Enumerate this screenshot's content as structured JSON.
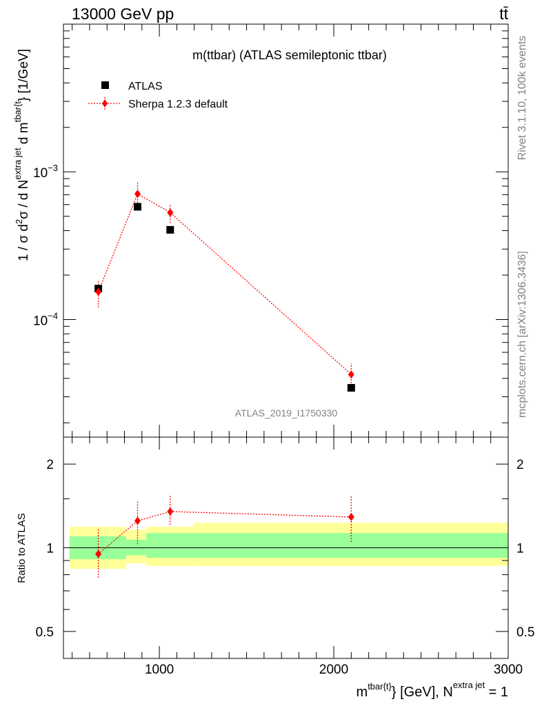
{
  "header": {
    "left": "13000 GeV pp",
    "right": "tt̄"
  },
  "side_labels": {
    "rivet": "Rivet 3.1.10,  100k events",
    "mcplots": "mcplots.cern.ch [arXiv:1306.3436]"
  },
  "chart_data": [
    {
      "type": "scatter",
      "title": "m(ttbar) (ATLAS semileptonic ttbar)",
      "watermark": "ATLAS_2019_I1750330",
      "ylabel": "1 / σ d²σ / d N^{extra jet} d m^{tbar{t}} [1/GeV]",
      "yscale": "log",
      "ylim": [
        1.6e-05,
        0.01
      ],
      "xlim": [
        450,
        3000
      ],
      "ytick_labels": [
        {
          "value": 0.001,
          "base": "10",
          "exp": "−3"
        },
        {
          "value": 0.0001,
          "base": "10",
          "exp": "−4"
        }
      ],
      "legend": {
        "placement": "top-left",
        "entries": [
          "ATLAS",
          "Sherpa 1.2.3 default"
        ]
      },
      "series": [
        {
          "name": "ATLAS",
          "color": "#000000",
          "marker": "square",
          "x": [
            650,
            875,
            1062,
            2100
          ],
          "y": [
            0.000162,
            0.00058,
            0.000405,
            3.45e-05
          ]
        },
        {
          "name": "Sherpa 1.2.3 default",
          "color": "#ff0000",
          "marker": "diamond",
          "line": "dotted",
          "x": [
            650,
            875,
            1062,
            2100
          ],
          "y": [
            0.000154,
            0.00071,
            0.00053,
            4.25e-05
          ],
          "yerr_low": [
            0.000121,
            0.00059,
            0.00045,
            3.55e-05
          ],
          "yerr_high": [
            0.000186,
            0.00085,
            0.00061,
            5.05e-05
          ]
        }
      ]
    },
    {
      "type": "scatter",
      "ylabel": "Ratio to ATLAS",
      "xlabel_main": "m",
      "xlabel_sup": "tbar{t}",
      "xlabel_mid": "} [GeV], N",
      "xlabel_sup2": "extra jet",
      "xlabel_end": " = 1",
      "yscale": "log",
      "ylim": [
        0.4,
        2.5
      ],
      "xlim": [
        450,
        3000
      ],
      "xticks": [
        1000,
        2000,
        3000
      ],
      "xtick_labels": [
        "1000",
        "2000",
        "3000"
      ],
      "yticks": [
        2,
        1,
        0.5
      ],
      "ytick_labels": [
        "2",
        "1",
        "0.5"
      ],
      "bands": [
        {
          "x0": 485,
          "x1": 810,
          "yellow": [
            0.84,
            1.19
          ],
          "green": [
            0.91,
            1.1
          ]
        },
        {
          "x0": 810,
          "x1": 925,
          "yellow": [
            0.88,
            1.16
          ],
          "green": [
            0.94,
            1.07
          ]
        },
        {
          "x0": 925,
          "x1": 1195,
          "yellow": [
            0.86,
            1.19
          ],
          "green": [
            0.92,
            1.13
          ]
        },
        {
          "x0": 1195,
          "x1": 3000,
          "yellow": [
            0.86,
            1.23
          ],
          "green": [
            0.92,
            1.13
          ]
        }
      ],
      "series": [
        {
          "name": "Sherpa 1.2.3 default",
          "color": "#ff0000",
          "marker": "diamond",
          "line": "dotted",
          "x": [
            650,
            875,
            1062,
            2100
          ],
          "y": [
            0.95,
            1.25,
            1.35,
            1.29
          ],
          "yerr_low": [
            0.78,
            1.03,
            1.21,
            1.05
          ],
          "yerr_high": [
            1.17,
            1.48,
            1.55,
            1.54
          ]
        }
      ]
    }
  ]
}
